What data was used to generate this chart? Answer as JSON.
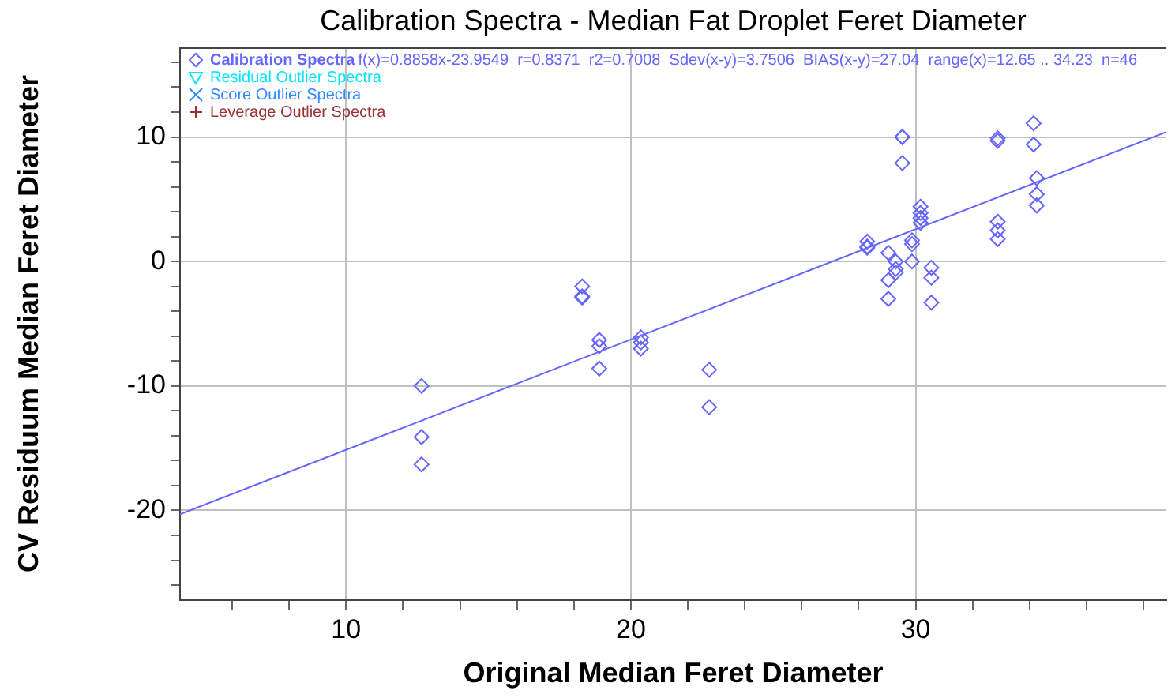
{
  "chart_data": {
    "type": "scatter",
    "title": "Calibration Spectra - Median Fat Droplet Feret Diameter",
    "xlabel": "Original Median Feret Diameter",
    "ylabel": "CV Residuum Median Feret Diameter",
    "annotations": [
      "f(x)=0.8858x-23.9549  r=0.8371  r2=0.7008  Sdev(x-y)=3.7506  BIAS(x-y)=27.04  range(x)=12.65 .. 34.23  n=46"
    ],
    "series": [
      {
        "name": "Calibration Spectra",
        "color": "#6666ff",
        "marker": "diamond",
        "x": [
          12.65,
          12.65,
          12.65,
          18.29,
          18.29,
          18.29,
          18.89,
          18.89,
          18.89,
          20.35,
          20.35,
          20.35,
          22.75,
          22.75,
          28.3,
          28.3,
          28.3,
          29.04,
          29.04,
          29.04,
          29.3,
          29.3,
          29.3,
          29.53,
          29.53,
          29.53,
          29.87,
          29.87,
          29.87,
          30.17,
          30.17,
          30.17,
          30.17,
          30.55,
          30.55,
          30.55,
          32.88,
          32.88,
          32.88,
          32.88,
          32.88,
          34.14,
          34.14,
          34.25,
          34.25,
          34.25
        ],
        "values": [
          -10.0,
          -14.1,
          -16.3,
          -2.0,
          -2.8,
          -2.9,
          -6.3,
          -6.8,
          -8.6,
          -6.1,
          -6.5,
          -7.0,
          -8.7,
          -11.7,
          1.6,
          1.2,
          1.1,
          0.7,
          -1.5,
          -3.0,
          0.0,
          -0.6,
          -0.9,
          10.0,
          10.0,
          7.9,
          1.7,
          1.4,
          0.0,
          4.4,
          3.9,
          3.5,
          3.1,
          -0.5,
          -1.3,
          -3.3,
          9.9,
          9.7,
          3.2,
          2.5,
          1.8,
          11.1,
          9.4,
          6.7,
          5.4,
          4.5
        ]
      },
      {
        "name": "Residual Outlier Spectra",
        "color": "#00e5ff",
        "marker": "triangle"
      },
      {
        "name": "Score Outlier Spectra",
        "color": "#3388ff",
        "marker": "cross"
      },
      {
        "name": "Leverage Outlier Spectra",
        "color": "#993333",
        "marker": "cross"
      },
      {
        "type": "line",
        "color": "#6666ff",
        "marker": "none",
        "x": [
          4.17,
          38.8
        ],
        "values": [
          -20.3,
          10.4
        ]
      }
    ],
    "xlim": [
      4.17,
      38.8
    ],
    "ylim": [
      -27.2,
      17.2
    ],
    "xticks": [
      {
        "value": 6,
        "label": null
      },
      {
        "value": 8,
        "label": null
      },
      10,
      {
        "value": 12,
        "label": null
      },
      {
        "value": 14,
        "label": null
      },
      {
        "value": 16,
        "label": null
      },
      {
        "value": 18,
        "label": null
      },
      20,
      {
        "value": 22,
        "label": null
      },
      {
        "value": 24,
        "label": null
      },
      {
        "value": 26,
        "label": null
      },
      {
        "value": 28,
        "label": null
      },
      30,
      {
        "value": 32,
        "label": null
      },
      {
        "value": 34,
        "label": null
      },
      {
        "value": 36,
        "label": null
      },
      {
        "value": 38,
        "label": null
      }
    ],
    "yticks": [
      {
        "value": -26,
        "label": null
      },
      {
        "value": -24,
        "label": null
      },
      {
        "value": -22,
        "label": null
      },
      -20,
      {
        "value": -18,
        "label": null
      },
      {
        "value": -16,
        "label": null
      },
      {
        "value": -14,
        "label": null
      },
      {
        "value": -12,
        "label": null
      },
      -10,
      {
        "value": -8,
        "label": null
      },
      {
        "value": -6,
        "label": null
      },
      {
        "value": -4,
        "label": null
      },
      {
        "value": -2,
        "label": null
      },
      0,
      {
        "value": 2,
        "label": null
      },
      {
        "value": 4,
        "label": null
      },
      {
        "value": 6,
        "label": null
      },
      {
        "value": 8,
        "label": null
      },
      10,
      {
        "value": 12,
        "label": null
      },
      {
        "value": 14,
        "label": null
      },
      {
        "value": 16,
        "label": null
      }
    ],
    "grid": true,
    "legend": "top left"
  }
}
